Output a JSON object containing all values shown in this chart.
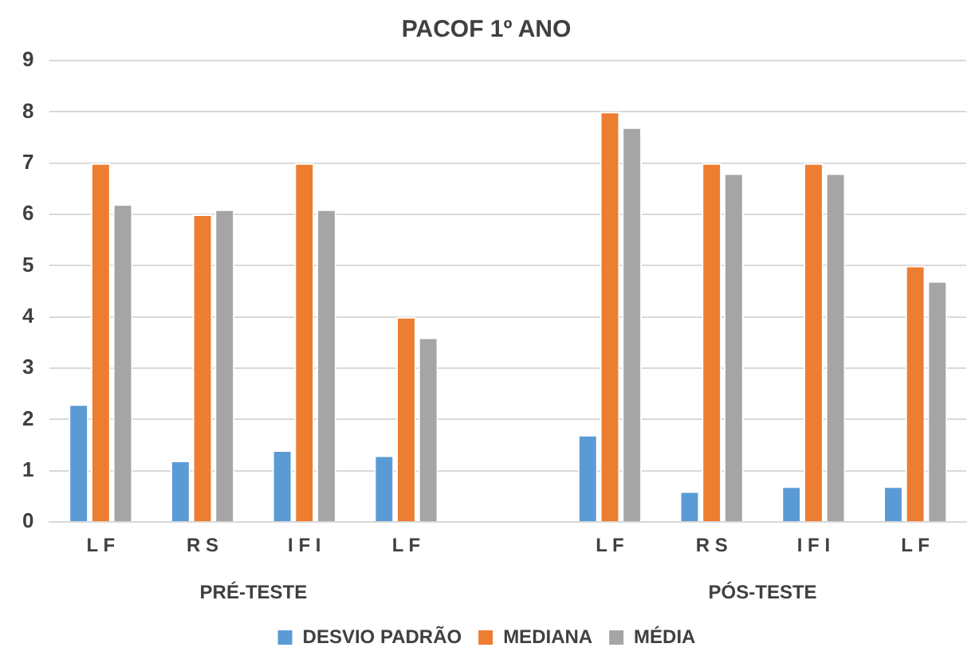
{
  "chart_data": {
    "type": "bar",
    "title": "PACOF 1º ANO",
    "categories": [
      "L F",
      "R S",
      "I F I",
      "L F",
      null,
      "L F",
      "R S",
      "I F I",
      "L F"
    ],
    "series": [
      {
        "name": "DESVIO PADRÃO",
        "color": "#5b9bd5",
        "values": [
          2.3,
          1.2,
          1.4,
          1.3,
          null,
          1.7,
          0.6,
          0.7,
          0.7
        ]
      },
      {
        "name": "MEDIANA",
        "color": "#ed7d31",
        "values": [
          7,
          6,
          7,
          4,
          null,
          8,
          7,
          7,
          5
        ]
      },
      {
        "name": "MÉDIA",
        "color": "#a5a5a5",
        "values": [
          6.2,
          6.1,
          6.1,
          3.6,
          null,
          7.7,
          6.8,
          6.8,
          4.7
        ]
      }
    ],
    "annotations": [
      "PRÉ-TESTE",
      "PÓS-TESTE"
    ],
    "ylim": [
      0,
      9
    ],
    "yticks": [
      0,
      1,
      2,
      3,
      4,
      5,
      6,
      7,
      8,
      9
    ],
    "grid": "y",
    "legend": "bottom"
  }
}
